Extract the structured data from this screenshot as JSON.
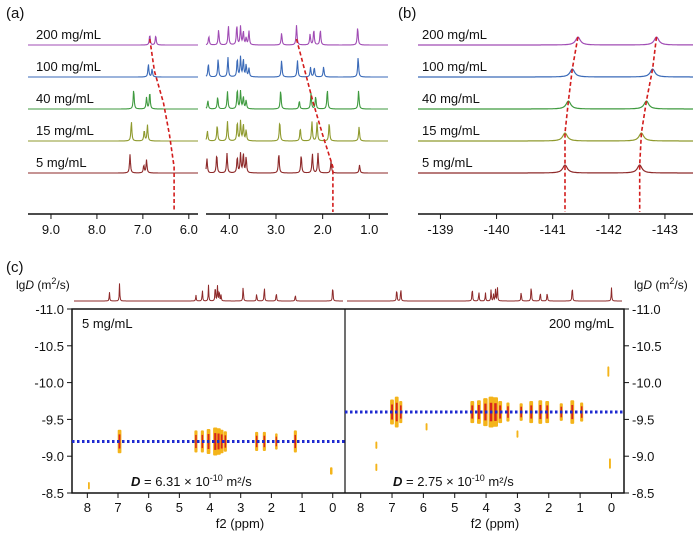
{
  "chart_data": [
    {
      "panel": "(a)",
      "type": "line",
      "xlabel": "",
      "ylabel": "",
      "x_ticks": [
        "9.0",
        "8.0",
        "7.0",
        "6.0",
        "4.0",
        "3.0",
        "2.0",
        "1.0"
      ],
      "x_break": [
        5.8,
        4.5
      ],
      "series": [
        {
          "name": "200 mg/mL",
          "color": "#a04cb4",
          "peaks": [
            6.85,
            6.72,
            4.44,
            4.23,
            4.02,
            3.84,
            3.76,
            3.7,
            3.64,
            3.58,
            2.88,
            2.56,
            2.27,
            2.19,
            2.05,
            1.25
          ]
        },
        {
          "name": "100 mg/mL",
          "color": "#3a6ab8",
          "peaks": [
            6.88,
            6.8,
            4.45,
            4.24,
            4.03,
            3.83,
            3.76,
            3.7,
            3.64,
            3.58,
            2.88,
            2.54,
            2.26,
            2.18,
            1.98,
            1.24
          ]
        },
        {
          "name": "40 mg/mL",
          "color": "#3f9a3f",
          "peaks": [
            7.2,
            6.92,
            6.85,
            4.46,
            4.25,
            4.04,
            3.83,
            3.76,
            3.7,
            3.64,
            2.9,
            2.5,
            2.25,
            2.15,
            1.9,
            1.23
          ]
        },
        {
          "name": "15 mg/mL",
          "color": "#8f9a2e",
          "peaks": [
            7.25,
            6.97,
            6.9,
            4.47,
            4.26,
            4.04,
            3.83,
            3.76,
            3.7,
            3.64,
            2.92,
            2.48,
            2.23,
            2.12,
            1.86,
            1.22
          ]
        },
        {
          "name": "5 mg/mL",
          "color": "#8e2a2a",
          "peaks": [
            7.28,
            6.98,
            6.92,
            4.48,
            4.27,
            4.05,
            3.83,
            3.76,
            3.7,
            3.64,
            2.94,
            2.46,
            2.22,
            2.1,
            1.82,
            1.21
          ]
        }
      ],
      "trend_color": "#d21c1c",
      "trend_lines": [
        {
          "x": [
            6.85,
            6.75,
            6.55,
            6.42,
            6.32
          ]
        },
        {
          "x": [
            2.56,
            2.38,
            2.2,
            2.0,
            1.78
          ]
        }
      ]
    },
    {
      "panel": "(b)",
      "type": "line",
      "xlabel": "",
      "ylabel": "",
      "x_ticks": [
        "-139",
        "-140",
        "-141",
        "-142",
        "-143"
      ],
      "xlim": [
        -138.6,
        -143.5
      ],
      "series": [
        {
          "name": "200 mg/mL",
          "color": "#a04cb4",
          "peaks": [
            -141.45,
            -142.85
          ]
        },
        {
          "name": "100 mg/mL",
          "color": "#3a6ab8",
          "peaks": [
            -141.35,
            -142.78
          ]
        },
        {
          "name": "40 mg/mL",
          "color": "#3f9a3f",
          "peaks": [
            -141.28,
            -142.67
          ]
        },
        {
          "name": "15 mg/mL",
          "color": "#8f9a2e",
          "peaks": [
            -141.22,
            -142.58
          ]
        },
        {
          "name": "5 mg/mL",
          "color": "#8e2a2a",
          "peaks": [
            -141.22,
            -142.55
          ]
        }
      ],
      "trend_color": "#d21c1c",
      "trend_lines": [
        {
          "x": [
            -141.45,
            -141.35,
            -141.28,
            -141.22,
            -141.22
          ]
        },
        {
          "x": [
            -142.85,
            -142.78,
            -142.67,
            -142.58,
            -142.55
          ]
        }
      ]
    },
    {
      "panel": "(c)",
      "type": "scatter",
      "ylabel": "lgD (m²/s)",
      "ylabel_parts": {
        "pre": "lg",
        "italic": "D",
        "post": " (m",
        "sup": "2",
        "end": "/s)"
      },
      "xlabel": "f2 (ppm)",
      "x_ticks": [
        "8",
        "7",
        "6",
        "5",
        "4",
        "3",
        "2",
        "1",
        "0"
      ],
      "y_ticks": [
        "-11.0",
        "-10.5",
        "-10.0",
        "-9.5",
        "-9.0",
        "-8.5"
      ],
      "ylim": [
        -11.0,
        -8.5
      ],
      "sub_panels": [
        {
          "sample_label": "5 mg/mL",
          "d_label": {
            "italic": "D",
            "text": " = 6.31 × 10",
            "sup": "-10",
            "end": " m²/s"
          },
          "lgD": -9.2,
          "line_color": "#1e2ad0",
          "spectrum_color": "#8e2a2a",
          "spectrum_peaks": [
            7.28,
            6.95,
            4.46,
            4.25,
            4.05,
            3.83,
            3.76,
            3.7,
            3.64,
            2.92,
            2.48,
            2.23,
            1.84,
            1.22,
            0.0
          ],
          "cross_peaks": [
            {
              "x": 6.95,
              "y": -9.2,
              "w": 0.12,
              "h": 0.32
            },
            {
              "x": 4.46,
              "y": -9.2,
              "w": 0.1,
              "h": 0.3
            },
            {
              "x": 4.25,
              "y": -9.2,
              "w": 0.1,
              "h": 0.3
            },
            {
              "x": 4.05,
              "y": -9.2,
              "w": 0.12,
              "h": 0.34
            },
            {
              "x": 3.83,
              "y": -9.2,
              "w": 0.14,
              "h": 0.38
            },
            {
              "x": 3.72,
              "y": -9.2,
              "w": 0.14,
              "h": 0.36
            },
            {
              "x": 3.62,
              "y": -9.2,
              "w": 0.12,
              "h": 0.32
            },
            {
              "x": 3.5,
              "y": -9.2,
              "w": 0.1,
              "h": 0.28
            },
            {
              "x": 2.48,
              "y": -9.2,
              "w": 0.1,
              "h": 0.26
            },
            {
              "x": 2.23,
              "y": -9.2,
              "w": 0.1,
              "h": 0.26
            },
            {
              "x": 1.84,
              "y": -9.2,
              "w": 0.08,
              "h": 0.22
            },
            {
              "x": 1.22,
              "y": -9.2,
              "w": 0.1,
              "h": 0.3
            },
            {
              "x": 0.05,
              "y": -8.8,
              "w": 0.08,
              "h": 0.1
            },
            {
              "x": 7.95,
              "y": -8.6,
              "w": 0.06,
              "h": 0.1
            }
          ]
        },
        {
          "sample_label": "200 mg/mL",
          "d_label": {
            "italic": "D",
            "text": " = 2.75 × 10",
            "sup": "-10",
            "end": " m²/s"
          },
          "lgD": -9.6,
          "line_color": "#1e2ad0",
          "spectrum_color": "#8e2a2a",
          "spectrum_peaks": [
            6.85,
            6.72,
            4.44,
            4.23,
            4.02,
            3.84,
            3.76,
            3.7,
            3.64,
            2.88,
            2.56,
            2.27,
            2.05,
            1.25,
            0.0
          ],
          "cross_peaks": [
            {
              "x": 7.0,
              "y": -9.6,
              "w": 0.12,
              "h": 0.34
            },
            {
              "x": 6.85,
              "y": -9.6,
              "w": 0.12,
              "h": 0.42
            },
            {
              "x": 6.72,
              "y": -9.6,
              "w": 0.1,
              "h": 0.3
            },
            {
              "x": 4.44,
              "y": -9.6,
              "w": 0.12,
              "h": 0.3
            },
            {
              "x": 4.23,
              "y": -9.6,
              "w": 0.12,
              "h": 0.32
            },
            {
              "x": 4.02,
              "y": -9.6,
              "w": 0.14,
              "h": 0.38
            },
            {
              "x": 3.84,
              "y": -9.6,
              "w": 0.16,
              "h": 0.42
            },
            {
              "x": 3.7,
              "y": -9.6,
              "w": 0.16,
              "h": 0.4
            },
            {
              "x": 3.55,
              "y": -9.6,
              "w": 0.12,
              "h": 0.3
            },
            {
              "x": 3.3,
              "y": -9.6,
              "w": 0.1,
              "h": 0.26
            },
            {
              "x": 2.88,
              "y": -9.6,
              "w": 0.1,
              "h": 0.24
            },
            {
              "x": 2.56,
              "y": -9.6,
              "w": 0.12,
              "h": 0.3
            },
            {
              "x": 2.27,
              "y": -9.6,
              "w": 0.12,
              "h": 0.32
            },
            {
              "x": 2.05,
              "y": -9.6,
              "w": 0.12,
              "h": 0.3
            },
            {
              "x": 1.6,
              "y": -9.6,
              "w": 0.1,
              "h": 0.24
            },
            {
              "x": 1.25,
              "y": -9.6,
              "w": 0.12,
              "h": 0.32
            },
            {
              "x": 0.95,
              "y": -9.6,
              "w": 0.1,
              "h": 0.26
            },
            {
              "x": 0.1,
              "y": -10.15,
              "w": 0.06,
              "h": 0.14
            },
            {
              "x": 0.05,
              "y": -8.9,
              "w": 0.06,
              "h": 0.14
            },
            {
              "x": 3.0,
              "y": -9.3,
              "w": 0.06,
              "h": 0.1
            },
            {
              "x": 5.9,
              "y": -9.4,
              "w": 0.06,
              "h": 0.1
            },
            {
              "x": 7.5,
              "y": -8.85,
              "w": 0.06,
              "h": 0.1
            },
            {
              "x": 7.5,
              "y": -9.15,
              "w": 0.06,
              "h": 0.1
            }
          ]
        }
      ]
    }
  ]
}
